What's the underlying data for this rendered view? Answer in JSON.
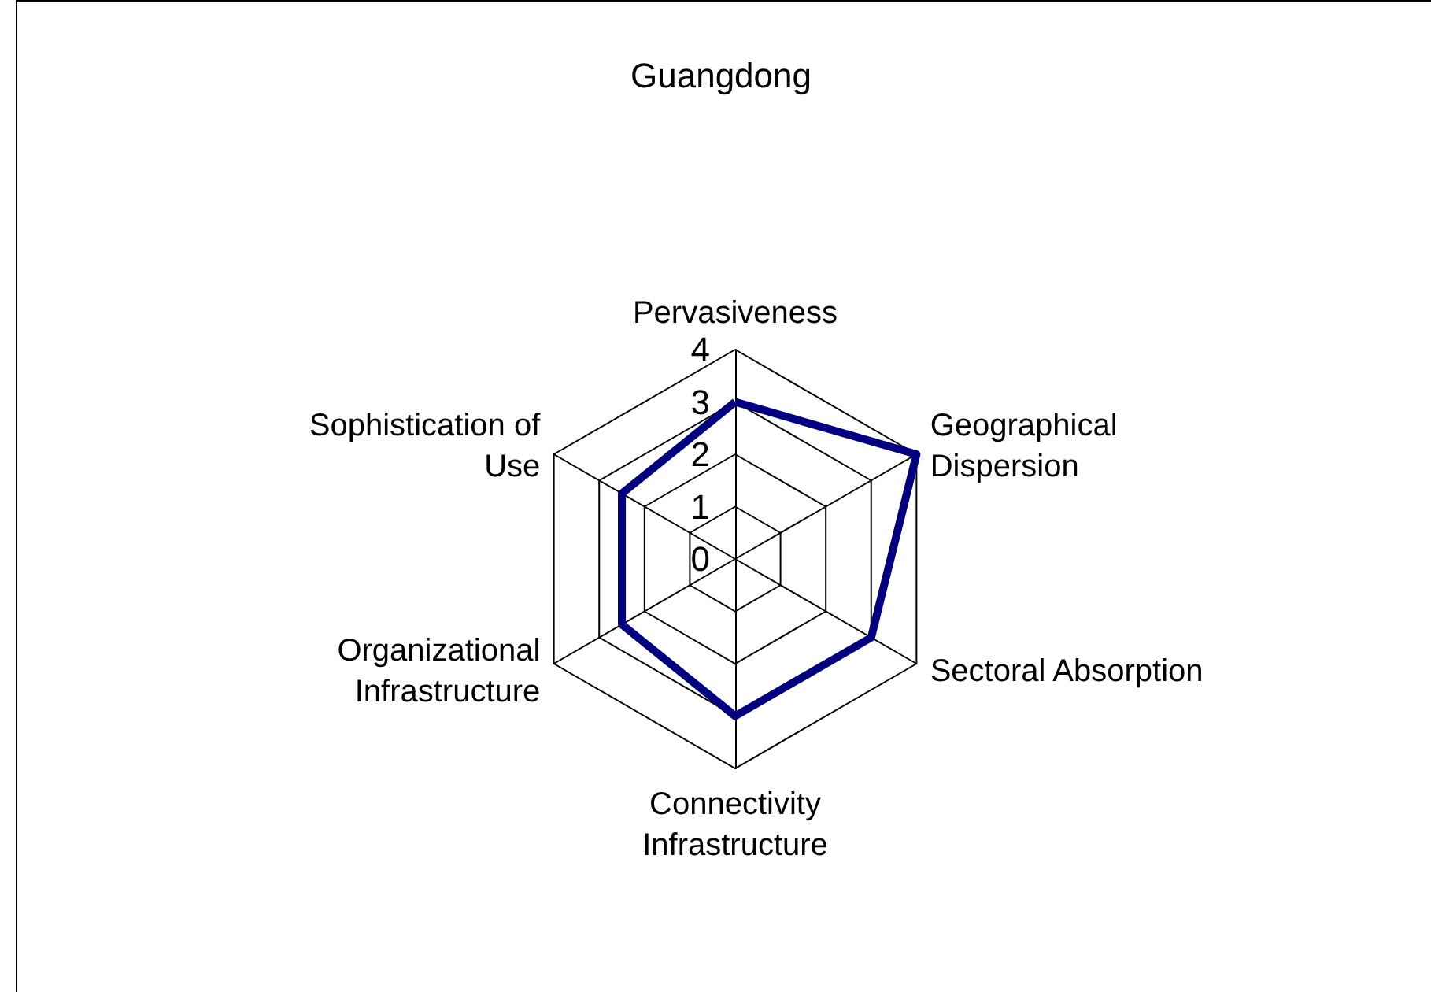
{
  "chart_data": {
    "type": "radar",
    "title": "Guangdong",
    "categories": [
      "Pervasiveness",
      "Geographical Dispersion",
      "Sectoral Absorption",
      "Connectivity Infrastructure",
      "Organizational Infrastructure",
      "Sophistication of Use"
    ],
    "series": [
      {
        "color": "#000080",
        "values": [
          3,
          4,
          3,
          3,
          2.5,
          2.5
        ]
      }
    ],
    "ylim": [
      0,
      4
    ],
    "yticks": [
      0,
      1,
      2,
      3,
      4
    ],
    "grid": true,
    "marker": "none",
    "line_style": "solid"
  }
}
